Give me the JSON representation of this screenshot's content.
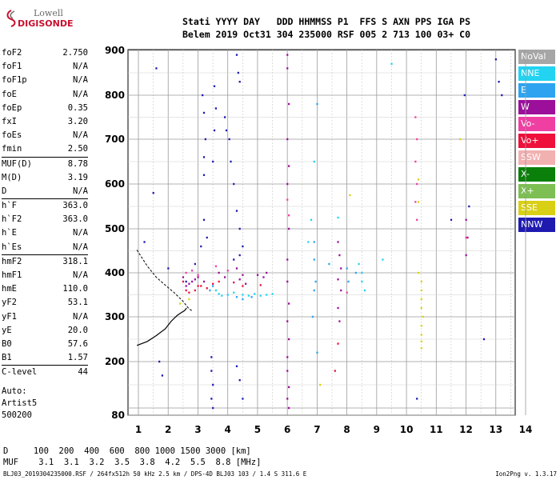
{
  "logo": {
    "line1": "Lowell",
    "line2": "DIGISONDE"
  },
  "header": {
    "row1": "Stati YYYY DAY   DDD HHMMSS P1  FFS S AXN PPS IGA PS",
    "row2": "Belem 2019 Oct31 304 235000 RSF 005 2 713 100 03+ C0"
  },
  "params": [
    {
      "k": "foF2",
      "v": "2.750"
    },
    {
      "k": "foF1",
      "v": "N/A"
    },
    {
      "k": "foF1p",
      "v": "N/A"
    },
    {
      "k": "foE",
      "v": "N/A"
    },
    {
      "k": "foEp",
      "v": "0.35"
    },
    {
      "k": "fxI",
      "v": "3.20"
    },
    {
      "k": "foEs",
      "v": "N/A"
    },
    {
      "k": "fmin",
      "v": "2.50"
    },
    {
      "k": "MUF(D)",
      "v": "8.78",
      "divider": true
    },
    {
      "k": "M(D)",
      "v": "3.19"
    },
    {
      "k": "D",
      "v": "N/A"
    },
    {
      "k": "h`F",
      "v": "363.0",
      "divider": true
    },
    {
      "k": "h`F2",
      "v": "363.0"
    },
    {
      "k": "h`E",
      "v": "N/A"
    },
    {
      "k": "h`Es",
      "v": "N/A"
    },
    {
      "k": "hmF2",
      "v": "318.1",
      "divider": true
    },
    {
      "k": "hmF1",
      "v": "N/A"
    },
    {
      "k": "hmE",
      "v": "110.0"
    },
    {
      "k": "yF2",
      "v": "53.1"
    },
    {
      "k": "yF1",
      "v": "N/A"
    },
    {
      "k": "yE",
      "v": "20.0"
    },
    {
      "k": "B0",
      "v": "57.6"
    },
    {
      "k": "B1",
      "v": "1.57"
    },
    {
      "k": "C-level",
      "v": "44",
      "divider": true
    }
  ],
  "auto": {
    "label": "Auto:",
    "artist": "Artist5",
    "code": "500200"
  },
  "legend": [
    {
      "label": "NoVal",
      "color": "#a6a6a6"
    },
    {
      "label": "NNE",
      "color": "#22d3f2"
    },
    {
      "label": "E",
      "color": "#2ea4f0"
    },
    {
      "label": "W",
      "color": "#9b0f9b"
    },
    {
      "label": "Vo-",
      "color": "#ef3fa3"
    },
    {
      "label": "Vo+",
      "color": "#ee0f3b"
    },
    {
      "label": "SSW",
      "color": "#f2b1b1"
    },
    {
      "label": "X-",
      "color": "#0a7f0a"
    },
    {
      "label": "X+",
      "color": "#7dbf53"
    },
    {
      "label": "SSE",
      "color": "#d9d016"
    },
    {
      "label": "NNW",
      "color": "#1e1ab0"
    }
  ],
  "footer": {
    "row1": "D     100  200  400  600  800 1000 1500 3000 [km]",
    "row2": "MUF    3.1  3.1  3.2  3.5  3.8  4.2  5.5  8.8 [MHz]",
    "source": "BLJ03_2019304235000.RSF / 264fx512h 50 kHz 2.5 km / DPS-4D BLJ03 103 / 1.4 S 311.6 E",
    "version": "Ion2Png v. 1.3.17"
  },
  "chart_data": {
    "type": "scatter",
    "title": "",
    "xlabel": "",
    "ylabel": "",
    "xlim": [
      1,
      14
    ],
    "ylim": [
      80,
      900
    ],
    "x_ticks": [
      1,
      2,
      3,
      4,
      5,
      6,
      7,
      8,
      9,
      10,
      11,
      12,
      13,
      14
    ],
    "y_ticks": [
      80,
      100,
      200,
      300,
      400,
      500,
      600,
      700,
      800,
      900
    ],
    "y_tick_labels": [
      "80",
      "",
      "200",
      "300",
      "400",
      "500",
      "600",
      "700",
      "800",
      "900"
    ],
    "grid": true,
    "trace_x": [
      0.95,
      1.3,
      1.6,
      1.9,
      2.1,
      2.3,
      2.45,
      2.55,
      2.62
    ],
    "trace_y": [
      236,
      245,
      258,
      273,
      290,
      303,
      310,
      314,
      320
    ],
    "trace_upper_x": [
      0.95,
      1.3,
      1.6,
      1.9,
      2.2,
      2.5,
      2.7,
      2.8
    ],
    "trace_upper_y": [
      452,
      415,
      390,
      372,
      355,
      335,
      318,
      314
    ],
    "series": [
      {
        "name": "NNE",
        "color": "#22d3f2",
        "points": [
          [
            3.6,
            360
          ],
          [
            3.7,
            352
          ],
          [
            3.8,
            348
          ],
          [
            4.0,
            350
          ],
          [
            4.2,
            355
          ],
          [
            4.5,
            350
          ],
          [
            4.7,
            348
          ],
          [
            4.9,
            352
          ],
          [
            5.1,
            348
          ],
          [
            5.3,
            350
          ],
          [
            5.5,
            352
          ],
          [
            6.7,
            470
          ],
          [
            6.8,
            520
          ],
          [
            6.9,
            650
          ],
          [
            7.7,
            525
          ],
          [
            8.4,
            420
          ],
          [
            8.5,
            400
          ],
          [
            8.5,
            380
          ],
          [
            8.6,
            360
          ],
          [
            9.2,
            430
          ],
          [
            9.5,
            870
          ]
        ]
      },
      {
        "name": "E",
        "color": "#2ea4f0",
        "points": [
          [
            3.4,
            360
          ],
          [
            3.5,
            370
          ],
          [
            4.3,
            345
          ],
          [
            4.5,
            340
          ],
          [
            4.8,
            345
          ],
          [
            6.9,
            470
          ],
          [
            6.9,
            430
          ],
          [
            6.95,
            380
          ],
          [
            6.9,
            360
          ],
          [
            6.85,
            300
          ],
          [
            7.0,
            220
          ],
          [
            7.0,
            780
          ],
          [
            7.4,
            420
          ],
          [
            8.0,
            410
          ],
          [
            8.05,
            380
          ],
          [
            8.3,
            400
          ]
        ]
      },
      {
        "name": "W",
        "color": "#9b0f9b",
        "points": [
          [
            2.5,
            390
          ],
          [
            2.6,
            370
          ],
          [
            2.7,
            375
          ],
          [
            2.8,
            380
          ],
          [
            2.9,
            385
          ],
          [
            3.0,
            390
          ],
          [
            3.2,
            380
          ],
          [
            3.7,
            400
          ],
          [
            3.9,
            390
          ],
          [
            4.3,
            410
          ],
          [
            4.4,
            385
          ],
          [
            4.5,
            395
          ],
          [
            4.6,
            375
          ],
          [
            5.0,
            395
          ],
          [
            5.2,
            390
          ],
          [
            5.3,
            400
          ],
          [
            6.0,
            890
          ],
          [
            6.0,
            860
          ],
          [
            6.05,
            780
          ],
          [
            6.0,
            700
          ],
          [
            6.05,
            640
          ],
          [
            6.0,
            600
          ],
          [
            6.05,
            500
          ],
          [
            6.0,
            430
          ],
          [
            6.0,
            380
          ],
          [
            6.05,
            330
          ],
          [
            6.0,
            290
          ],
          [
            6.05,
            250
          ],
          [
            6.0,
            210
          ],
          [
            6.0,
            180
          ],
          [
            6.05,
            145
          ],
          [
            6.0,
            120
          ],
          [
            6.05,
            100
          ],
          [
            7.7,
            470
          ],
          [
            7.75,
            440
          ],
          [
            7.8,
            410
          ],
          [
            7.7,
            385
          ],
          [
            7.8,
            360
          ],
          [
            7.7,
            320
          ],
          [
            7.75,
            290
          ],
          [
            12.0,
            520
          ],
          [
            12.05,
            480
          ],
          [
            12.0,
            440
          ]
        ]
      },
      {
        "name": "Vo-",
        "color": "#ef3fa3",
        "points": [
          [
            2.6,
            400
          ],
          [
            2.8,
            405
          ],
          [
            3.0,
            395
          ],
          [
            3.6,
            415
          ],
          [
            4.0,
            405
          ],
          [
            6.0,
            565
          ],
          [
            6.05,
            530
          ],
          [
            8.0,
            355
          ],
          [
            10.3,
            750
          ],
          [
            10.35,
            700
          ],
          [
            10.3,
            650
          ],
          [
            10.35,
            600
          ],
          [
            10.3,
            560
          ],
          [
            10.35,
            520
          ],
          [
            12.0,
            480
          ]
        ]
      },
      {
        "name": "Vo+",
        "color": "#ee0f3b",
        "points": [
          [
            2.5,
            380
          ],
          [
            2.6,
            360
          ],
          [
            2.7,
            355
          ],
          [
            2.9,
            360
          ],
          [
            3.0,
            370
          ],
          [
            3.1,
            370
          ],
          [
            3.3,
            365
          ],
          [
            3.5,
            375
          ],
          [
            3.7,
            380
          ],
          [
            4.2,
            378
          ],
          [
            4.5,
            370
          ],
          [
            5.1,
            372
          ],
          [
            7.6,
            180
          ],
          [
            7.7,
            240
          ]
        ]
      },
      {
        "name": "SSE",
        "color": "#d9d016",
        "points": [
          [
            2.4,
            330
          ],
          [
            2.7,
            340
          ],
          [
            7.1,
            150
          ],
          [
            8.1,
            575
          ],
          [
            10.4,
            400
          ],
          [
            10.5,
            380
          ],
          [
            10.5,
            360
          ],
          [
            10.5,
            340
          ],
          [
            10.5,
            320
          ],
          [
            10.55,
            300
          ],
          [
            10.5,
            280
          ],
          [
            10.5,
            260
          ],
          [
            10.5,
            245
          ],
          [
            10.5,
            230
          ],
          [
            10.4,
            560
          ],
          [
            10.4,
            610
          ],
          [
            11.8,
            700
          ]
        ]
      },
      {
        "name": "NNW",
        "color": "#1e1ab0",
        "points": [
          [
            1.2,
            470
          ],
          [
            1.5,
            580
          ],
          [
            1.6,
            860
          ],
          [
            1.7,
            200
          ],
          [
            1.8,
            170
          ],
          [
            2.0,
            410
          ],
          [
            2.6,
            380
          ],
          [
            2.9,
            420
          ],
          [
            3.1,
            460
          ],
          [
            3.2,
            520
          ],
          [
            3.3,
            480
          ],
          [
            3.15,
            800
          ],
          [
            3.2,
            760
          ],
          [
            3.25,
            700
          ],
          [
            3.2,
            660
          ],
          [
            3.2,
            620
          ],
          [
            3.45,
            210
          ],
          [
            3.45,
            180
          ],
          [
            3.5,
            150
          ],
          [
            3.45,
            120
          ],
          [
            3.5,
            100
          ],
          [
            3.55,
            820
          ],
          [
            3.6,
            770
          ],
          [
            3.55,
            720
          ],
          [
            3.5,
            650
          ],
          [
            4.3,
            890
          ],
          [
            4.35,
            850
          ],
          [
            4.4,
            830
          ],
          [
            4.3,
            190
          ],
          [
            4.4,
            160
          ],
          [
            4.5,
            120
          ],
          [
            3.9,
            750
          ],
          [
            3.95,
            720
          ],
          [
            4.05,
            700
          ],
          [
            4.1,
            650
          ],
          [
            4.2,
            600
          ],
          [
            4.3,
            540
          ],
          [
            4.4,
            500
          ],
          [
            4.2,
            430
          ],
          [
            4.4,
            440
          ],
          [
            4.5,
            460
          ],
          [
            10.35,
            120
          ],
          [
            11.5,
            520
          ],
          [
            12.1,
            550
          ],
          [
            13.0,
            880
          ],
          [
            13.1,
            830
          ],
          [
            13.2,
            800
          ],
          [
            11.95,
            800
          ],
          [
            12.6,
            250
          ]
        ]
      }
    ]
  }
}
